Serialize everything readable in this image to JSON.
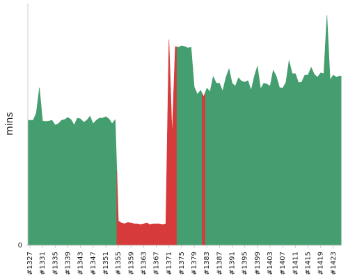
{
  "chart_data": {
    "type": "area",
    "y_label": "mins",
    "ylim": [
      0,
      100
    ],
    "yticks": [
      0
    ],
    "categories": [
      "#1327",
      null,
      null,
      null,
      "#1331",
      null,
      null,
      null,
      "#1335",
      null,
      null,
      null,
      "#1339",
      null,
      null,
      null,
      "#1343",
      null,
      null,
      null,
      "#1347",
      null,
      null,
      null,
      "#1351",
      null,
      null,
      null,
      "#1355",
      null,
      null,
      null,
      "#1359",
      null,
      null,
      null,
      "#1363",
      null,
      null,
      null,
      "#1367",
      null,
      null,
      null,
      "#1371",
      null,
      null,
      null,
      "#1375",
      null,
      null,
      null,
      "#1379",
      null,
      null,
      null,
      "#1383",
      null,
      null,
      null,
      "#1387",
      null,
      null,
      null,
      "#1391",
      null,
      null,
      null,
      "#1395",
      null,
      null,
      null,
      "#1399",
      null,
      null,
      null,
      "#1403",
      null,
      null,
      null,
      "#1407",
      null,
      null,
      null,
      "#1411",
      null,
      null,
      null,
      "#1415",
      null,
      null,
      null,
      "#1419",
      null,
      null,
      null,
      "#1423",
      null,
      null
    ],
    "values": [
      51.7,
      51.7,
      54.6,
      65.2,
      51.4,
      51.2,
      51.4,
      51.7,
      49.7,
      50.3,
      51.7,
      52.0,
      52.9,
      52.0,
      49.7,
      52.6,
      52.3,
      50.9,
      51.7,
      53.4,
      50.3,
      51.7,
      52.6,
      52.6,
      53.2,
      52.3,
      50.3,
      52.0,
      10.1,
      9.2,
      8.9,
      9.5,
      9.2,
      8.9,
      8.9,
      8.6,
      8.9,
      9.2,
      8.6,
      8.9,
      8.9,
      8.9,
      8.6,
      8.9,
      85.1,
      45.4,
      82.2,
      81.9,
      82.5,
      82.2,
      81.6,
      81.9,
      65.5,
      62.4,
      64.1,
      61.5,
      65.0,
      63.5,
      69.8,
      67.0,
      67.0,
      63.8,
      69.3,
      73.0,
      67.0,
      65.8,
      69.3,
      67.8,
      67.5,
      68.1,
      64.1,
      69.8,
      74.1,
      64.7,
      67.0,
      66.7,
      65.8,
      72.4,
      69.8,
      65.2,
      65.0,
      67.3,
      76.4,
      71.0,
      71.0,
      67.3,
      67.5,
      70.4,
      70.4,
      73.6,
      70.7,
      69.5,
      71.3,
      71.0,
      95.1,
      68.4,
      70.4,
      69.5,
      70.0
    ],
    "colors": [
      "#459e6f",
      "#459e6f",
      "#459e6f",
      "#459e6f",
      "#459e6f",
      "#459e6f",
      "#459e6f",
      "#459e6f",
      "#459e6f",
      "#459e6f",
      "#459e6f",
      "#459e6f",
      "#459e6f",
      "#459e6f",
      "#459e6f",
      "#459e6f",
      "#459e6f",
      "#459e6f",
      "#459e6f",
      "#459e6f",
      "#459e6f",
      "#459e6f",
      "#459e6f",
      "#459e6f",
      "#459e6f",
      "#459e6f",
      "#459e6f",
      "#459e6f",
      "#d63a3a",
      "#d63a3a",
      "#d63a3a",
      "#d63a3a",
      "#d63a3a",
      "#d63a3a",
      "#d63a3a",
      "#d63a3a",
      "#d63a3a",
      "#d63a3a",
      "#d63a3a",
      "#d63a3a",
      "#d63a3a",
      "#d63a3a",
      "#d63a3a",
      "#d63a3a",
      "#d63a3a",
      "#d63a3a",
      "#d63a3a",
      "#459e6f",
      "#459e6f",
      "#459e6f",
      "#459e6f",
      "#459e6f",
      "#459e6f",
      "#459e6f",
      "#459e6f",
      "#d63a3a",
      "#459e6f",
      "#459e6f",
      "#459e6f",
      "#459e6f",
      "#459e6f",
      "#459e6f",
      "#459e6f",
      "#459e6f",
      "#459e6f",
      "#459e6f",
      "#459e6f",
      "#459e6f",
      "#459e6f",
      "#459e6f",
      "#459e6f",
      "#459e6f",
      "#459e6f",
      "#459e6f",
      "#459e6f",
      "#459e6f",
      "#459e6f",
      "#459e6f",
      "#459e6f",
      "#459e6f",
      "#459e6f",
      "#459e6f",
      "#459e6f",
      "#459e6f",
      "#459e6f",
      "#459e6f",
      "#459e6f",
      "#459e6f",
      "#459e6f",
      "#459e6f",
      "#459e6f",
      "#459e6f",
      "#459e6f",
      "#459e6f",
      "#459e6f",
      "#459e6f",
      "#459e6f",
      "#459e6f",
      "#459e6f"
    ]
  }
}
